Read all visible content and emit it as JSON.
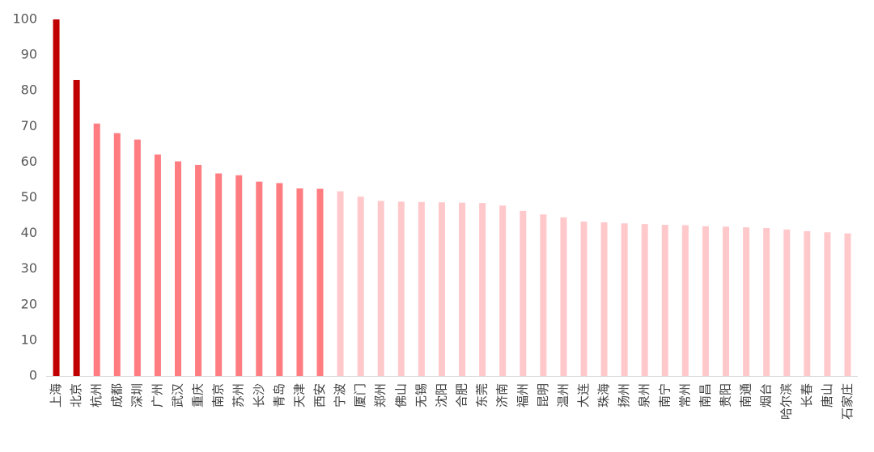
{
  "chart_data": {
    "type": "bar",
    "categories": [
      "上海",
      "北京",
      "杭州",
      "成都",
      "深圳",
      "广州",
      "武汉",
      "重庆",
      "南京",
      "苏州",
      "长沙",
      "青岛",
      "天津",
      "西安",
      "宁波",
      "厦门",
      "郑州",
      "佛山",
      "无锡",
      "沈阳",
      "合肥",
      "东莞",
      "济南",
      "福州",
      "昆明",
      "温州",
      "大连",
      "珠海",
      "扬州",
      "泉州",
      "南宁",
      "常州",
      "南昌",
      "贵阳",
      "南通",
      "烟台",
      "哈尔滨",
      "长春",
      "唐山",
      "石家庄"
    ],
    "values": [
      100,
      83,
      70.8,
      68.1,
      66.3,
      62.1,
      60.2,
      59.2,
      56.8,
      56.3,
      54.5,
      54.1,
      52.6,
      52.5,
      51.8,
      50.3,
      49.1,
      48.9,
      48.8,
      48.7,
      48.6,
      48.5,
      47.8,
      46.3,
      45.3,
      44.5,
      43.3,
      43.1,
      42.8,
      42.6,
      42.4,
      42.3,
      42.0,
      41.9,
      41.7,
      41.5,
      41.1,
      40.6,
      40.3,
      40.0
    ],
    "colors": [
      "#c00000",
      "#c00000",
      "#ff7c80",
      "#ff7c80",
      "#ff7c80",
      "#ff7c80",
      "#ff7c80",
      "#ff7c80",
      "#ff7c80",
      "#ff7c80",
      "#ff7c80",
      "#ff7c80",
      "#ff7c80",
      "#ff7c80",
      "#ffc9cc",
      "#ffc9cc",
      "#ffc9cc",
      "#ffc9cc",
      "#ffc9cc",
      "#ffc9cc",
      "#ffc9cc",
      "#ffc9cc",
      "#ffc9cc",
      "#ffc9cc",
      "#ffc9cc",
      "#ffc9cc",
      "#ffc9cc",
      "#ffc9cc",
      "#ffc9cc",
      "#ffc9cc",
      "#ffc9cc",
      "#ffc9cc",
      "#ffc9cc",
      "#ffc9cc",
      "#ffc9cc",
      "#ffc9cc",
      "#ffc9cc",
      "#ffc9cc",
      "#ffc9cc",
      "#ffc9cc"
    ],
    "ylim": [
      0,
      100
    ],
    "yticks": [
      0,
      10,
      20,
      30,
      40,
      50,
      60,
      70,
      80,
      90,
      100
    ],
    "grid": false
  }
}
